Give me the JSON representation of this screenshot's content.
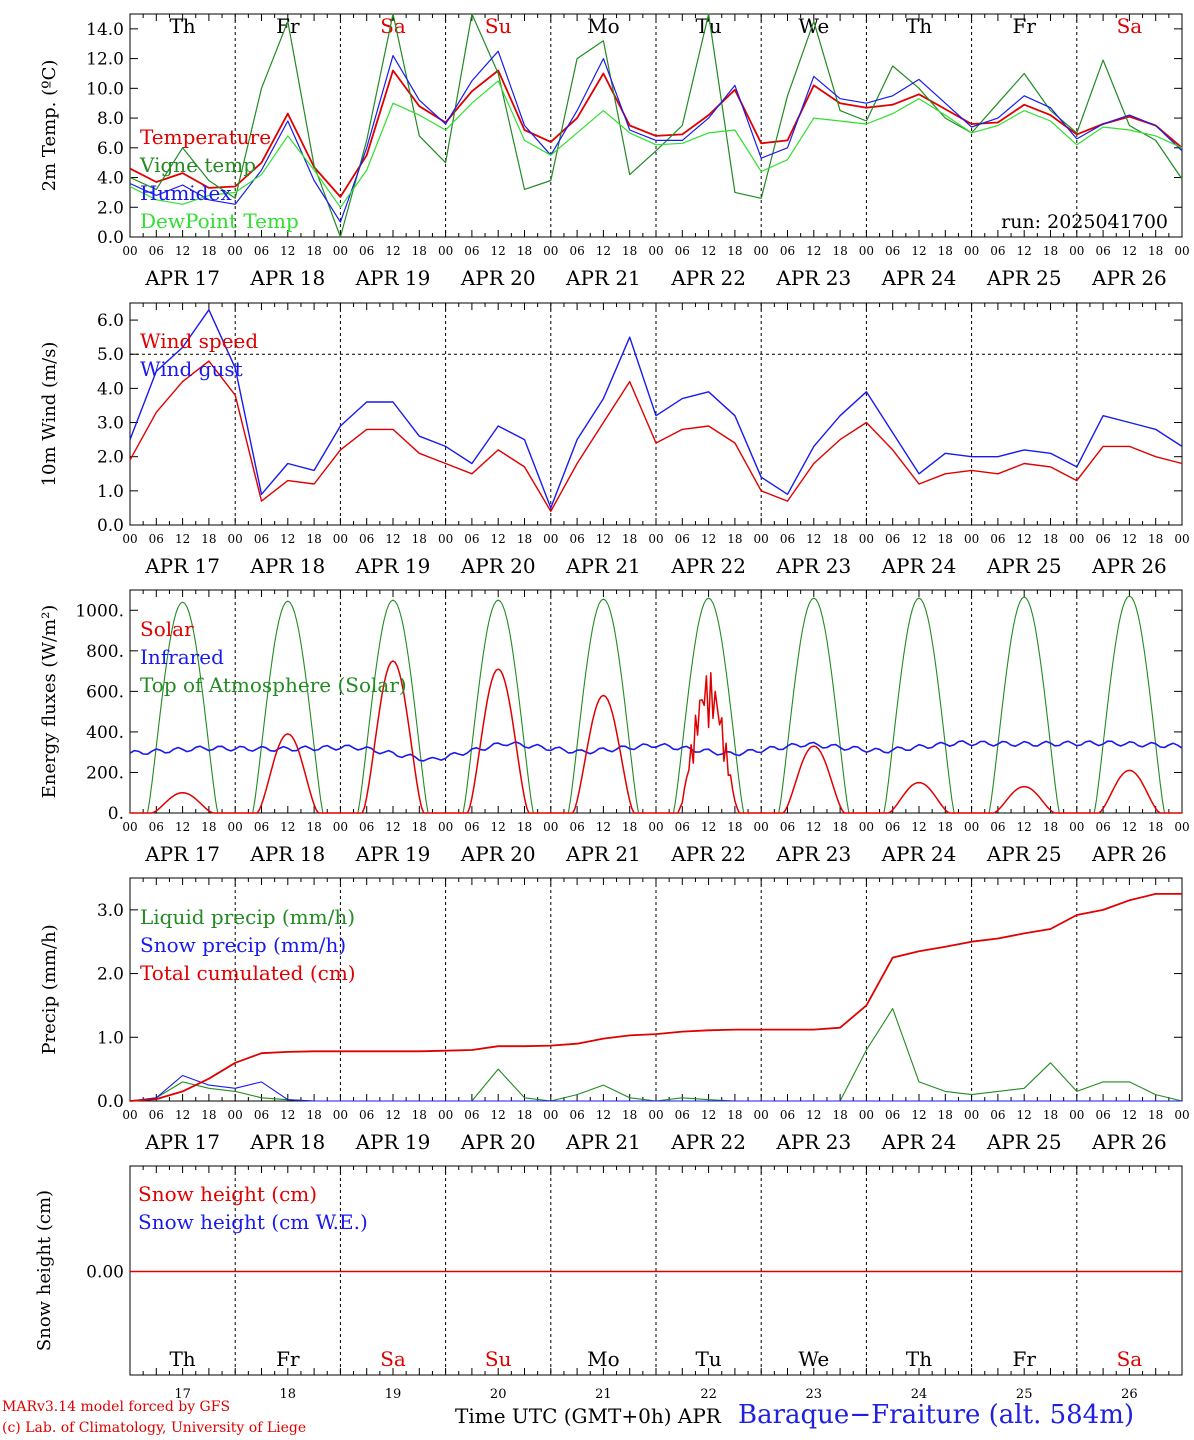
{
  "colors": {
    "red": "#e00000",
    "green": "#228b22",
    "blue": "#1a1aee",
    "lightgreen": "#30e030",
    "weekend": "#e00000",
    "grid": "#000000"
  },
  "chart_data": [
    {
      "type": "line",
      "panel": "temperature",
      "ylabel": "2m Temp. (ºC)",
      "ylim": [
        0,
        15
      ],
      "yticks": [
        "0.0",
        "2.0",
        "4.0",
        "6.0",
        "8.0",
        "10.0",
        "12.0",
        "14.0"
      ],
      "x_hours": [
        0,
        6,
        12,
        18,
        24,
        30,
        36,
        42,
        48,
        54,
        60,
        66,
        72,
        78,
        84,
        90,
        96,
        102,
        108,
        114,
        120,
        126,
        132,
        138,
        144,
        150,
        156,
        162,
        168,
        174,
        180,
        186,
        192,
        198,
        204,
        210,
        216,
        222,
        228,
        234,
        240
      ],
      "annotation": "run: 2025041700",
      "series": [
        {
          "name": "Temperature",
          "color": "red",
          "values": [
            4.6,
            3.7,
            4.3,
            3.3,
            3.4,
            5.0,
            8.3,
            4.7,
            2.7,
            5.5,
            11.2,
            8.8,
            7.7,
            9.8,
            11.2,
            7.2,
            6.4,
            8.0,
            11.0,
            7.5,
            6.8,
            6.9,
            8.2,
            9.9,
            6.3,
            6.5,
            10.2,
            9.0,
            8.7,
            8.9,
            9.6,
            8.6,
            7.6,
            7.7,
            8.9,
            8.2,
            6.9,
            7.6,
            8.1,
            7.5,
            6.0
          ]
        },
        {
          "name": "Vigne temp",
          "color": "green",
          "values": [
            4.0,
            3.2,
            6.0,
            3.8,
            2.6,
            10.0,
            14.5,
            4.8,
            0.0,
            6.5,
            15.0,
            6.8,
            5.0,
            15.0,
            11.0,
            3.2,
            3.8,
            12.0,
            13.2,
            4.2,
            5.8,
            7.5,
            15.0,
            3.0,
            2.6,
            9.5,
            14.5,
            8.5,
            7.8,
            11.5,
            10.0,
            8.0,
            7.0,
            9.0,
            11.0,
            8.5,
            7.0,
            11.9,
            7.5,
            6.5,
            3.9
          ]
        },
        {
          "name": "Humidex",
          "color": "blue",
          "values": [
            3.6,
            2.8,
            3.5,
            2.5,
            2.2,
            4.5,
            7.8,
            3.8,
            1.0,
            6.0,
            12.2,
            9.2,
            7.6,
            10.5,
            12.5,
            7.5,
            5.5,
            8.5,
            12.0,
            7.2,
            6.5,
            6.5,
            8.0,
            10.2,
            5.3,
            6.0,
            10.8,
            9.3,
            9.0,
            9.5,
            10.6,
            9.0,
            7.4,
            8.0,
            9.5,
            8.7,
            6.6,
            7.6,
            8.2,
            7.5,
            5.8
          ]
        },
        {
          "name": "DewPoint Temp",
          "color": "lightgreen",
          "values": [
            3.4,
            2.5,
            2.2,
            2.8,
            3.0,
            4.2,
            6.8,
            4.5,
            2.0,
            4.5,
            9.0,
            8.2,
            7.2,
            9.0,
            10.5,
            6.5,
            5.5,
            7.0,
            8.5,
            7.0,
            6.2,
            6.3,
            7.0,
            7.2,
            4.4,
            5.2,
            8.0,
            7.8,
            7.6,
            8.3,
            9.3,
            8.2,
            7.0,
            7.5,
            8.5,
            7.8,
            6.2,
            7.4,
            7.2,
            6.8,
            6.0
          ]
        }
      ]
    },
    {
      "type": "line",
      "panel": "wind",
      "ylabel": "10m Wind (m/s)",
      "ylim": [
        0,
        6.5
      ],
      "yticks": [
        "0.0",
        "1.0",
        "2.0",
        "3.0",
        "4.0",
        "5.0",
        "6.0"
      ],
      "hline": 5.0,
      "x_hours": [
        0,
        6,
        12,
        18,
        24,
        30,
        36,
        42,
        48,
        54,
        60,
        66,
        72,
        78,
        84,
        90,
        96,
        102,
        108,
        114,
        120,
        126,
        132,
        138,
        144,
        150,
        156,
        162,
        168,
        174,
        180,
        186,
        192,
        198,
        204,
        210,
        216,
        222,
        228,
        234,
        240
      ],
      "series": [
        {
          "name": "Wind speed",
          "color": "red",
          "values": [
            1.9,
            3.3,
            4.2,
            4.8,
            3.8,
            0.7,
            1.3,
            1.2,
            2.2,
            2.8,
            2.8,
            2.1,
            1.8,
            1.5,
            2.2,
            1.7,
            0.4,
            1.8,
            3.0,
            4.2,
            2.4,
            2.8,
            2.9,
            2.4,
            1.0,
            0.7,
            1.8,
            2.5,
            3.0,
            2.2,
            1.2,
            1.5,
            1.6,
            1.5,
            1.8,
            1.7,
            1.3,
            2.3,
            2.3,
            2.0,
            1.8
          ]
        },
        {
          "name": "Wind gust",
          "color": "blue",
          "values": [
            2.5,
            4.5,
            5.2,
            6.3,
            4.6,
            0.9,
            1.8,
            1.6,
            2.9,
            3.6,
            3.6,
            2.6,
            2.3,
            1.8,
            2.9,
            2.5,
            0.5,
            2.5,
            3.7,
            5.5,
            3.2,
            3.7,
            3.9,
            3.2,
            1.4,
            0.9,
            2.3,
            3.2,
            3.9,
            2.7,
            1.5,
            2.1,
            2.0,
            2.0,
            2.2,
            2.1,
            1.7,
            3.2,
            3.0,
            2.8,
            2.3
          ]
        }
      ]
    },
    {
      "type": "line",
      "panel": "energy",
      "ylabel": "Energy fluxes (W/m²)",
      "ylim": [
        0,
        1100
      ],
      "yticks": [
        "0.",
        "200.",
        "400.",
        "600.",
        "800.",
        "1000."
      ],
      "toa_peaks": [
        1040,
        1045,
        1050,
        1050,
        1055,
        1060,
        1060,
        1060,
        1065,
        1070
      ],
      "solar_peaks": [
        100,
        390,
        750,
        710,
        580,
        700,
        330,
        150,
        130,
        210
      ],
      "infrared": [
        295,
        320,
        315,
        325,
        260,
        345,
        300,
        335,
        290,
        340,
        305,
        345,
        340,
        345,
        330
      ],
      "series": [
        {
          "name": "Solar",
          "color": "red"
        },
        {
          "name": "Infrared",
          "color": "blue"
        },
        {
          "name": "Top of Atmosphere (Solar)",
          "color": "green"
        }
      ]
    },
    {
      "type": "line",
      "panel": "precip",
      "ylabel": "Precip (mm/h)",
      "ylim": [
        0,
        3.5
      ],
      "yticks": [
        "0.0",
        "1.0",
        "2.0",
        "3.0"
      ],
      "x_hours": [
        0,
        6,
        12,
        18,
        24,
        30,
        36,
        42,
        48,
        54,
        60,
        66,
        72,
        78,
        84,
        90,
        96,
        102,
        108,
        114,
        120,
        126,
        132,
        138,
        144,
        150,
        156,
        162,
        168,
        174,
        180,
        186,
        192,
        198,
        204,
        210,
        216,
        222,
        228,
        234,
        240
      ],
      "series": [
        {
          "name": "Liquid precip (mm/h)",
          "color": "green",
          "values": [
            0,
            0.05,
            0.3,
            0.2,
            0.15,
            0.05,
            0.02,
            0,
            0,
            0,
            0,
            0,
            0,
            0,
            0.5,
            0.05,
            0,
            0.1,
            0.25,
            0.05,
            0,
            0.05,
            0.02,
            0,
            0,
            0,
            0,
            0,
            0.8,
            1.45,
            0.3,
            0.15,
            0.1,
            0.15,
            0.2,
            0.6,
            0.15,
            0.3,
            0.3,
            0.1,
            0
          ]
        },
        {
          "name": "Snow precip (mm/h)",
          "color": "blue",
          "values": [
            0,
            0.05,
            0.4,
            0.25,
            0.2,
            0.3,
            0.02,
            0,
            0,
            0,
            0,
            0,
            0,
            0,
            0,
            0,
            0,
            0,
            0,
            0,
            0,
            0,
            0,
            0,
            0,
            0,
            0,
            0,
            0,
            0,
            0,
            0,
            0,
            0,
            0,
            0,
            0,
            0,
            0,
            0,
            0
          ]
        },
        {
          "name": "Total cumulated (cm)",
          "color": "red",
          "values": [
            0,
            0.03,
            0.15,
            0.35,
            0.6,
            0.75,
            0.77,
            0.78,
            0.78,
            0.78,
            0.78,
            0.78,
            0.79,
            0.8,
            0.86,
            0.86,
            0.87,
            0.9,
            0.98,
            1.03,
            1.05,
            1.09,
            1.11,
            1.12,
            1.12,
            1.12,
            1.12,
            1.15,
            1.5,
            2.25,
            2.35,
            2.42,
            2.5,
            2.55,
            2.63,
            2.7,
            2.92,
            3.0,
            3.15,
            3.25,
            3.25
          ]
        }
      ]
    },
    {
      "type": "line",
      "panel": "snow",
      "ylabel": "Snow height (cm)",
      "ytick": "0.00",
      "series": [
        {
          "name": "Snow height (cm)",
          "color": "red",
          "values": [
            0,
            0
          ]
        },
        {
          "name": "Snow height (cm W.E.)",
          "color": "blue",
          "values": [
            0,
            0
          ]
        }
      ]
    }
  ],
  "x_axis": {
    "hour_labels": [
      "00",
      "06",
      "12",
      "18"
    ],
    "final_hour_label": "00",
    "dates": [
      "APR 17",
      "APR 18",
      "APR 19",
      "APR 20",
      "APR 21",
      "APR 22",
      "APR 23",
      "APR 24",
      "APR 25",
      "APR 26"
    ],
    "weekdays": [
      "Th",
      "Fr",
      "Sa",
      "Su",
      "Mo",
      "Tu",
      "We",
      "Th",
      "Fr",
      "Sa"
    ],
    "weekend_index": [
      2,
      3,
      9
    ],
    "day_numbers": [
      "17",
      "18",
      "19",
      "20",
      "21",
      "22",
      "23",
      "24",
      "25",
      "26"
    ],
    "month": "APR"
  },
  "footer": {
    "model_line": "MARv3.14 model forced by GFS",
    "credit_line": "(c) Lab. of Climatology, University of Liege",
    "time_label": "Time UTC (GMT+0h)",
    "station": "Baraque−Fraiture (alt. 584m)"
  }
}
